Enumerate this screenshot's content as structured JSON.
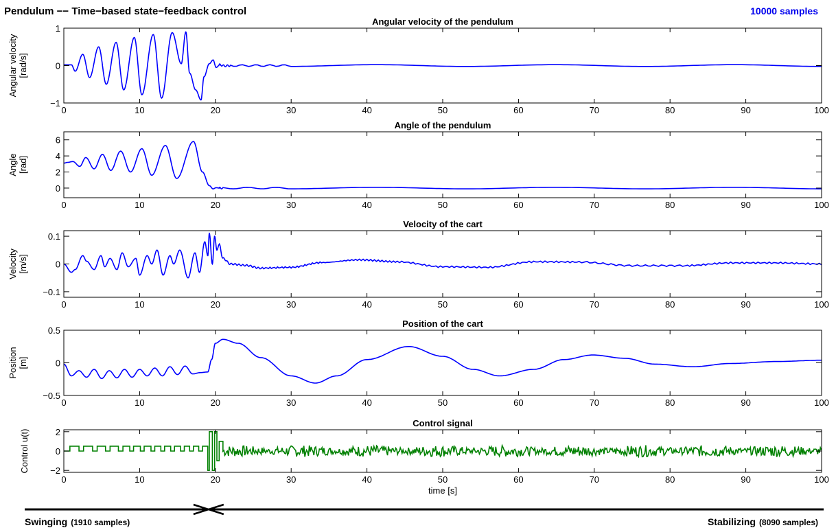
{
  "header": {
    "title": "Pendulum -- Time-based state-feedback control",
    "samples": "10000 samples"
  },
  "footer": {
    "left_main": "Swinging",
    "left_sub": "(1910 samples)",
    "right_main": "Stabilizing",
    "right_sub": "(8090 samples)",
    "switch_time": 19.1
  },
  "colors": {
    "response": "#0000ff",
    "control": "#008000",
    "samples_text": "#0000ee"
  },
  "chart_data": [
    {
      "type": "line",
      "title": "Angular velocity of the pendulum",
      "ylabel": [
        "Angular velocity",
        "[rad/s]"
      ],
      "xlabel": "",
      "xlim": [
        0,
        100
      ],
      "ylim": [
        -1,
        1
      ],
      "xticks": [
        0,
        10,
        20,
        30,
        40,
        50,
        60,
        70,
        80,
        90,
        100
      ],
      "yticks": [
        -1,
        0,
        1
      ],
      "series": [
        {
          "color": "#0000ff",
          "x": [
            0,
            1,
            1.5,
            2.5,
            3.4,
            4.6,
            5.6,
            6.9,
            7.9,
            9.3,
            10.3,
            11.8,
            12.9,
            14.3,
            15.5,
            16.1,
            16.6,
            17.4,
            18.1,
            18.5,
            19.2,
            19.7,
            20.1,
            20.6,
            21.2,
            22,
            30,
            40,
            50,
            60,
            70,
            80,
            90,
            100
          ],
          "y": [
            0.02,
            0.02,
            -0.15,
            0.3,
            -0.32,
            0.5,
            -0.5,
            0.62,
            -0.65,
            0.75,
            -0.78,
            0.83,
            -0.87,
            0.88,
            0.05,
            0.9,
            -0.2,
            -0.65,
            -0.92,
            -0.3,
            0.05,
            0.15,
            -0.05,
            0.02,
            -0.01,
            0,
            0,
            0,
            0,
            0,
            0,
            0,
            0,
            0
          ]
        }
      ]
    },
    {
      "type": "line",
      "title": "Angle of the pendulum",
      "ylabel": [
        "Angle",
        "[rad]"
      ],
      "xlabel": "",
      "xlim": [
        0,
        100
      ],
      "ylim": [
        -1.2,
        7
      ],
      "xticks": [
        0,
        10,
        20,
        30,
        40,
        50,
        60,
        70,
        80,
        90,
        100
      ],
      "yticks": [
        0,
        2,
        4,
        6
      ],
      "series": [
        {
          "color": "#0000ff",
          "x": [
            0,
            0.5,
            1.2,
            2.1,
            2.9,
            4,
            5.1,
            6.2,
            7.5,
            8.8,
            10.3,
            11.6,
            13.4,
            14.9,
            17.1,
            18.3,
            19.2,
            19.7,
            20.1,
            20.5,
            21,
            30,
            40,
            50,
            60,
            70,
            80,
            90,
            100
          ],
          "y": [
            3.1,
            3.2,
            3.3,
            2.7,
            3.8,
            2.4,
            4.2,
            2.2,
            4.6,
            2.0,
            4.9,
            1.6,
            5.3,
            1.2,
            5.8,
            2.0,
            0.3,
            -0.1,
            0.05,
            0,
            0,
            0,
            0,
            0,
            0,
            0,
            0,
            0,
            0
          ]
        }
      ]
    },
    {
      "type": "line",
      "title": "Velocity of the cart",
      "ylabel": [
        "Velocity",
        "[m/s]"
      ],
      "xlabel": "",
      "xlim": [
        0,
        100
      ],
      "ylim": [
        -0.12,
        0.12
      ],
      "xticks": [
        0,
        10,
        20,
        30,
        40,
        50,
        60,
        70,
        80,
        90,
        100
      ],
      "yticks": [
        -0.1,
        0,
        0.1
      ],
      "series": [
        {
          "color": "#0000ff",
          "x": [
            0,
            1,
            1.5,
            2.5,
            3,
            4,
            4.9,
            5.4,
            6.1,
            7,
            7.7,
            8.5,
            9.5,
            10,
            11,
            11.6,
            12.3,
            13.1,
            14,
            14.5,
            15.3,
            16.4,
            17.3,
            17.9,
            18.6,
            19,
            19.2,
            19.6,
            19.9,
            20.2,
            20.5,
            21,
            22,
            24,
            26,
            30,
            34,
            39,
            44,
            50,
            56,
            62,
            68,
            75,
            82,
            88,
            94,
            100
          ],
          "y": [
            0,
            -0.03,
            -0.02,
            0.03,
            0.01,
            -0.02,
            0.03,
            -0.01,
            0.02,
            -0.02,
            0.04,
            -0.01,
            0.02,
            -0.04,
            0.03,
            0,
            0.05,
            -0.04,
            0.03,
            0,
            0.05,
            -0.05,
            0.04,
            -0.03,
            0.08,
            0.03,
            0.11,
            0,
            0.1,
            0.05,
            0.07,
            0.02,
            0,
            -0.005,
            -0.015,
            -0.012,
            0.005,
            0.015,
            0.008,
            -0.01,
            -0.012,
            0.008,
            0.007,
            -0.006,
            -0.006,
            0.004,
            0.004,
            0
          ]
        }
      ]
    },
    {
      "type": "line",
      "title": "Position of the cart",
      "ylabel": [
        "Position",
        "[m]"
      ],
      "xlabel": "",
      "xlim": [
        0,
        100
      ],
      "ylim": [
        -0.5,
        0.5
      ],
      "xticks": [
        0,
        10,
        20,
        30,
        40,
        50,
        60,
        70,
        80,
        90,
        100
      ],
      "yticks": [
        -0.5,
        0,
        0.5
      ],
      "series": [
        {
          "color": "#0000ff",
          "x": [
            0,
            1,
            2,
            3,
            4,
            5,
            6,
            7,
            8,
            9,
            10,
            11,
            12,
            13,
            14,
            15,
            16,
            17,
            18,
            19,
            19.5,
            20,
            21,
            23,
            26,
            30,
            33.2,
            36,
            40,
            45.5,
            50,
            54,
            57.5,
            62,
            66,
            69.8,
            74,
            78,
            83,
            88,
            94,
            100
          ],
          "y": [
            -0.02,
            -0.2,
            -0.12,
            -0.22,
            -0.1,
            -0.24,
            -0.12,
            -0.23,
            -0.1,
            -0.22,
            -0.1,
            -0.2,
            -0.08,
            -0.2,
            -0.06,
            -0.18,
            -0.05,
            -0.17,
            -0.15,
            -0.14,
            0.05,
            0.3,
            0.36,
            0.3,
            0.08,
            -0.2,
            -0.31,
            -0.2,
            0.05,
            0.25,
            0.1,
            -0.1,
            -0.2,
            -0.1,
            0.05,
            0.12,
            0.07,
            -0.02,
            -0.06,
            -0.01,
            0.02,
            0.04
          ]
        }
      ]
    },
    {
      "type": "line",
      "title": "Control signal",
      "ylabel": [
        "Control u(t)",
        ""
      ],
      "xlabel": "time [s]",
      "xlim": [
        0,
        100
      ],
      "ylim": [
        -2.2,
        2.2
      ],
      "xticks": [
        0,
        10,
        20,
        30,
        40,
        50,
        60,
        70,
        80,
        90,
        100
      ],
      "yticks": [
        -2,
        0,
        2
      ],
      "series": [
        {
          "color": "#008000",
          "step_segments": [
            [
              0,
              0
            ],
            [
              0.8,
              0.5
            ],
            [
              2,
              0
            ],
            [
              2.6,
              0.5
            ],
            [
              3.8,
              0
            ],
            [
              4.4,
              0.5
            ],
            [
              5.5,
              0
            ],
            [
              6.1,
              0.5
            ],
            [
              7.2,
              0
            ],
            [
              7.8,
              0.5
            ],
            [
              8.7,
              0
            ],
            [
              9.2,
              0.5
            ],
            [
              10.1,
              0
            ],
            [
              10.6,
              0.5
            ],
            [
              11.5,
              0
            ],
            [
              12,
              0.5
            ],
            [
              12.8,
              0
            ],
            [
              13.3,
              0.5
            ],
            [
              14.1,
              0
            ],
            [
              14.6,
              0.5
            ],
            [
              15.4,
              0
            ],
            [
              15.9,
              0.5
            ],
            [
              16.6,
              0
            ],
            [
              17.1,
              0.5
            ],
            [
              17.8,
              0
            ],
            [
              18.3,
              0.5
            ],
            [
              19,
              -2
            ],
            [
              19.2,
              2
            ],
            [
              19.6,
              -2
            ],
            [
              19.9,
              2
            ],
            [
              20.2,
              -1
            ],
            [
              20.5,
              1
            ],
            [
              21,
              0
            ]
          ],
          "noise_amplitude": 0.6
        }
      ]
    }
  ]
}
